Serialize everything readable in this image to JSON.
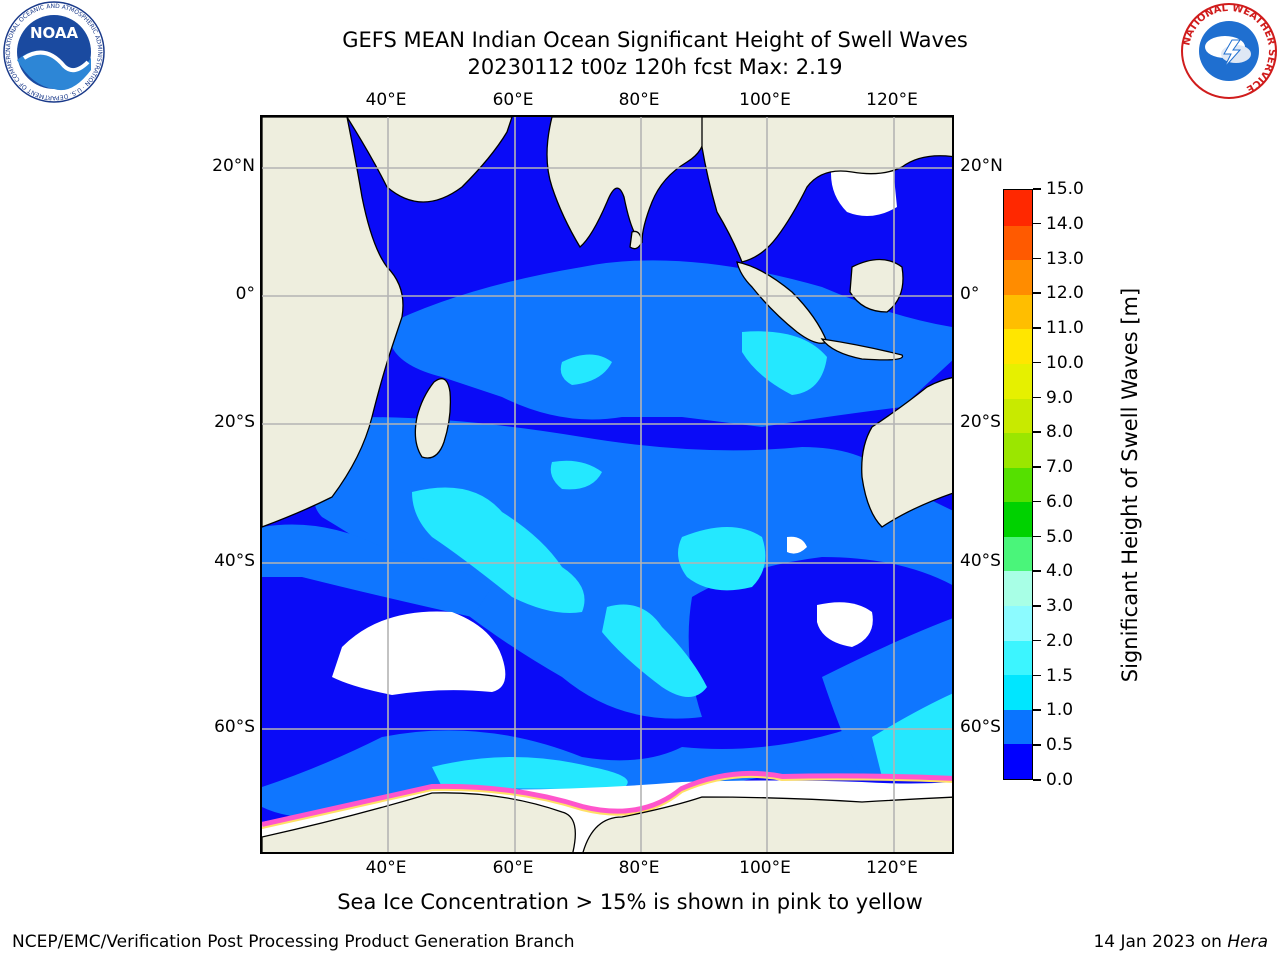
{
  "title_line1": "GEFS MEAN Indian Ocean Significant Height of Swell Waves",
  "title_line2": "20230112 t00z 120h fcst   Max: 2.19",
  "map": {
    "lon_labels": [
      "40°E",
      "60°E",
      "80°E",
      "100°E",
      "120°E"
    ],
    "lat_labels": [
      "20°N",
      "0°",
      "20°S",
      "40°S",
      "60°S"
    ],
    "colors": {
      "land": "#eeeede",
      "ocean_low": "#0a0bf7",
      "ocean_mid": "#0f76ff",
      "ocean_high": "#24e8ff",
      "ice_free": "#ffffff",
      "ice_edge": "#ff55cc",
      "gridline": "#b4b4b4"
    }
  },
  "colorbar": {
    "label": "Significant Height of Swell Waves [m]",
    "tick_labels": [
      "0.0",
      "0.5",
      "1.0",
      "1.5",
      "2.0",
      "3.0",
      "4.0",
      "5.0",
      "6.0",
      "7.0",
      "8.0",
      "9.0",
      "10.0",
      "11.0",
      "12.0",
      "13.0",
      "14.0",
      "15.0"
    ],
    "colors": [
      "#0000ff",
      "#0a74ff",
      "#00e6ff",
      "#3cf5ff",
      "#8cfbff",
      "#a8ffe6",
      "#4af57a",
      "#00d200",
      "#55e000",
      "#9be600",
      "#c8ea00",
      "#e6f000",
      "#ffe600",
      "#ffbe00",
      "#ff8c00",
      "#ff5a00",
      "#ff2800"
    ]
  },
  "ice_note": "Sea Ice Concentration > 15% is shown in pink to yellow",
  "footer_left": "NCEP/EMC/Verification Post Processing Product Generation Branch",
  "footer_date": "14 Jan 2023 on ",
  "footer_host": "Hera",
  "logos": {
    "noaa_text": "NOAA",
    "noaa_ring": "NATIONAL OCEANIC AND ATMOSPHERIC ADMINISTRATION · U.S. DEPARTMENT OF COMMERCE",
    "nws_ring": "NATIONAL WEATHER SERVICE"
  }
}
